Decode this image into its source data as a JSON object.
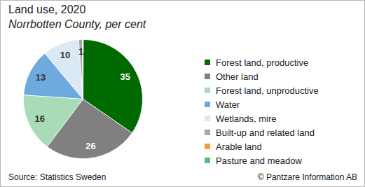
{
  "chart_data": {
    "type": "pie",
    "title": "Land use, 2020",
    "subtitle": "Norrbotten County, per cent",
    "categories": [
      "Forest land, productive",
      "Other land",
      "Forest land, unproductive",
      "Water",
      "Wetlands, mire",
      "Built-up and related land",
      "Arable land",
      "Pasture and meadow"
    ],
    "values": [
      35,
      26,
      16,
      13,
      10,
      1,
      0.1,
      0.1
    ],
    "value_labels": [
      "35",
      "26",
      "16",
      "13",
      "10",
      "1",
      null,
      null
    ],
    "colors": [
      "#006a00",
      "#808080",
      "#a9dbb8",
      "#6faadf",
      "#dbe9f7",
      "#a6a6a6",
      "#f0a030",
      "#5fba7d"
    ],
    "data_labels": true,
    "legend": "right",
    "source": "Source: Statistics Sweden",
    "credit": "© Pantzare Information AB"
  }
}
